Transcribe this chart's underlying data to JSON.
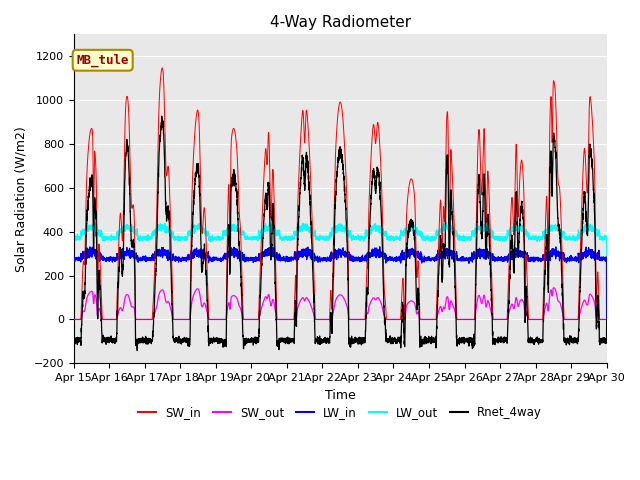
{
  "title": "4-Way Radiometer",
  "xlabel": "Time",
  "ylabel": "Solar Radiation (W/m2)",
  "ylim": [
    -200,
    1300
  ],
  "yticks": [
    -200,
    0,
    200,
    400,
    600,
    800,
    1000,
    1200
  ],
  "date_labels": [
    "Apr 15",
    "Apr 16",
    "Apr 17",
    "Apr 18",
    "Apr 19",
    "Apr 20",
    "Apr 21",
    "Apr 22",
    "Apr 23",
    "Apr 24",
    "Apr 25",
    "Apr 26",
    "Apr 27",
    "Apr 28",
    "Apr 29",
    "Apr 30"
  ],
  "legend_labels": [
    "SW_in",
    "SW_out",
    "LW_in",
    "LW_out",
    "Rnet_4way"
  ],
  "legend_colors": [
    "#ff0000",
    "#ff00ff",
    "#0000ff",
    "#00ffff",
    "#000000"
  ],
  "annotation_text": "MB_tule",
  "annotation_color": "#990000",
  "annotation_bg": "#ffffcc",
  "bg_color": "#e8e8e8",
  "n_days": 15,
  "pts_per_day": 288,
  "seed": 42,
  "sw_in_peaks": [
    870,
    1020,
    1150,
    960,
    870,
    910,
    1000,
    990,
    960,
    640,
    960,
    1050,
    930,
    1090,
    1040
  ],
  "lw_out_base": 390,
  "lw_in_base": 285,
  "night_rnet": -120
}
